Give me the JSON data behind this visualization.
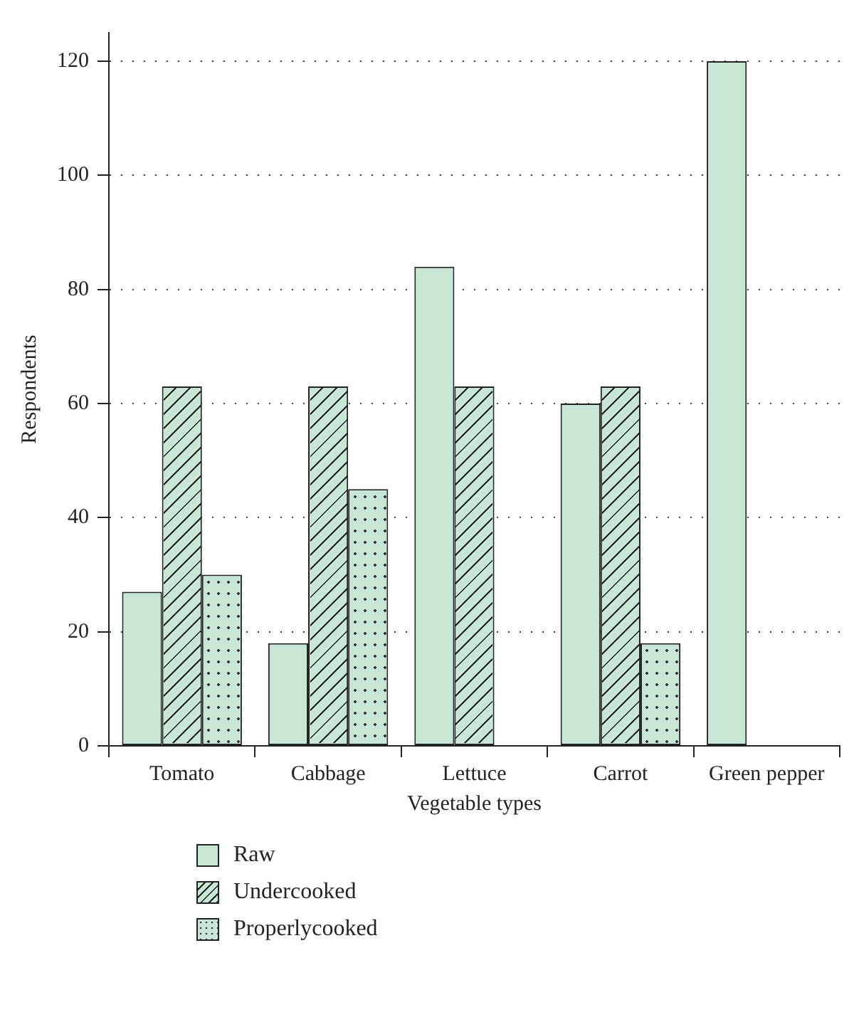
{
  "chart_data": {
    "type": "bar",
    "xlabel": "Vegetable types",
    "ylabel": "Respondents",
    "categories": [
      "Tomato",
      "Cabbage",
      "Lettuce",
      "Carrot",
      "Green pepper"
    ],
    "series": [
      {
        "name": "Raw",
        "color": "#c8e6d4",
        "values": [
          27,
          18,
          84,
          60,
          120
        ]
      },
      {
        "name": "Undercooked",
        "color": "#c8e6d4",
        "values": [
          63,
          63,
          63,
          63,
          null
        ]
      },
      {
        "name": "Properlycooked",
        "color": "#c8e6d4",
        "values": [
          30,
          45,
          0,
          18,
          null
        ]
      }
    ],
    "ylim": [
      0,
      125
    ],
    "yticks": [
      0,
      20,
      40,
      60,
      80,
      100,
      120
    ],
    "grid": "y",
    "legend": "bottom"
  }
}
